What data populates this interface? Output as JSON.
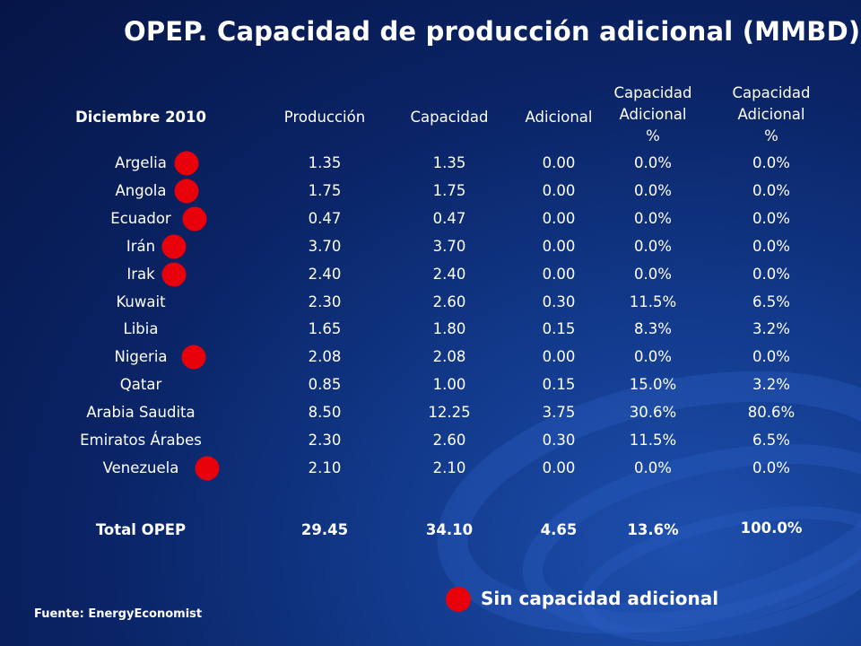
{
  "title": "OPEP. Capacidad de producción adicional (MMBD)",
  "colors": {
    "indicator": "#e8000b",
    "background": "#0a2466",
    "text": "#ffffff"
  },
  "table": {
    "headers": [
      "Diciembre 2010",
      "Producción",
      "Capacidad",
      "Adicional",
      "Capacidad\nAdicional\n%",
      "Capacidad\nAdicional\n%"
    ],
    "rows": [
      {
        "country": "Argelia",
        "produccion": "1.35",
        "capacidad": "1.35",
        "adicional": "0.00",
        "pct1": "0.0%",
        "pct2": "0.0%",
        "sin_capacidad": true
      },
      {
        "country": "Angola",
        "produccion": "1.75",
        "capacidad": "1.75",
        "adicional": "0.00",
        "pct1": "0.0%",
        "pct2": "0.0%",
        "sin_capacidad": true
      },
      {
        "country": "Ecuador",
        "produccion": "0.47",
        "capacidad": "0.47",
        "adicional": "0.00",
        "pct1": "0.0%",
        "pct2": "0.0%",
        "sin_capacidad": true
      },
      {
        "country": "Irán",
        "produccion": "3.70",
        "capacidad": "3.70",
        "adicional": "0.00",
        "pct1": "0.0%",
        "pct2": "0.0%",
        "sin_capacidad": true
      },
      {
        "country": "Irak",
        "produccion": "2.40",
        "capacidad": "2.40",
        "adicional": "0.00",
        "pct1": "0.0%",
        "pct2": "0.0%",
        "sin_capacidad": true
      },
      {
        "country": "Kuwait",
        "produccion": "2.30",
        "capacidad": "2.60",
        "adicional": "0.30",
        "pct1": "11.5%",
        "pct2": "6.5%",
        "sin_capacidad": false
      },
      {
        "country": "Libia",
        "produccion": "1.65",
        "capacidad": "1.80",
        "adicional": "0.15",
        "pct1": "8.3%",
        "pct2": "3.2%",
        "sin_capacidad": false
      },
      {
        "country": "Nigeria",
        "produccion": "2.08",
        "capacidad": "2.08",
        "adicional": "0.00",
        "pct1": "0.0%",
        "pct2": "0.0%",
        "sin_capacidad": true
      },
      {
        "country": "Qatar",
        "produccion": "0.85",
        "capacidad": "1.00",
        "adicional": "0.15",
        "pct1": "15.0%",
        "pct2": "3.2%",
        "sin_capacidad": false
      },
      {
        "country": "Arabia Saudita",
        "produccion": "8.50",
        "capacidad": "12.25",
        "adicional": "3.75",
        "pct1": "30.6%",
        "pct2": "80.6%",
        "sin_capacidad": false
      },
      {
        "country": "Emiratos Árabes",
        "produccion": "2.30",
        "capacidad": "2.60",
        "adicional": "0.30",
        "pct1": "11.5%",
        "pct2": "6.5%",
        "sin_capacidad": false
      },
      {
        "country": "Venezuela",
        "produccion": "2.10",
        "capacidad": "2.10",
        "adicional": "0.00",
        "pct1": "0.0%",
        "pct2": "0.0%",
        "sin_capacidad": true
      }
    ],
    "total": {
      "country": "Total OPEP",
      "produccion": "29.45",
      "capacidad": "34.10",
      "adicional": "4.65",
      "pct1": "13.6%",
      "pct2": "100.0%"
    }
  },
  "legend": {
    "label": "Sin capacidad adicional"
  },
  "source": "Fuente: EnergyEconomist"
}
